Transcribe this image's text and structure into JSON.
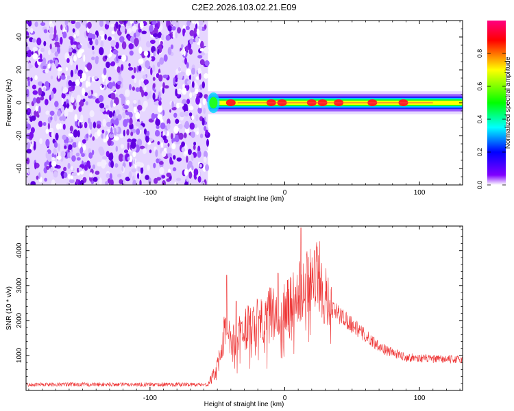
{
  "title": "C2E2.2026.103.02.21.E09",
  "chart_data": [
    {
      "type": "heatmap",
      "name": "spectrogram",
      "xlabel": "Height of straight line (km)",
      "ylabel": "Frequency (Hz)",
      "xlim": [
        -192,
        132
      ],
      "ylim": [
        -50,
        50
      ],
      "xticks": [
        -100,
        0,
        100
      ],
      "yticks": [
        -40,
        -20,
        0,
        20,
        40
      ],
      "noise_region_x": [
        -192,
        -57
      ],
      "signal_band_x": [
        -57,
        132
      ],
      "signal_band_frequency_hz": 0,
      "signal_band_halfwidth_hz": [
        3,
        7
      ],
      "colorbar": {
        "label": "Normalized spectral amplitude",
        "range": [
          0.0,
          1.0
        ],
        "ticks": [
          0.0,
          0.2,
          0.4,
          0.6,
          0.8
        ],
        "tick_labels": [
          "0.0",
          "0.2",
          "0.4",
          "0.6",
          "0.8"
        ],
        "colormap": [
          "#FFFFFF",
          "#8000FF",
          "#0000FF",
          "#00FFFF",
          "#00FF00",
          "#FFFF00",
          "#FF0000",
          "#FF0080"
        ]
      }
    },
    {
      "type": "line",
      "name": "snr",
      "xlabel": "Height of straight line (km)",
      "ylabel": "SNR (10 * v/v)",
      "xlim": [
        -192,
        132
      ],
      "ylim": [
        0,
        4700
      ],
      "xticks": [
        -100,
        0,
        100
      ],
      "yticks": [
        1000,
        2000,
        3000,
        4000
      ],
      "color": "#EE3333",
      "envelope": {
        "x": [
          -192,
          -57,
          -50,
          -46,
          -43,
          -40,
          -30,
          -20,
          -10,
          0,
          10,
          15,
          20,
          25,
          30,
          35,
          45,
          60,
          75,
          90,
          110,
          132
        ],
        "y": [
          170,
          170,
          700,
          1500,
          1700,
          1350,
          1750,
          2050,
          2250,
          2400,
          2700,
          3000,
          3300,
          3250,
          2800,
          2300,
          2050,
          1550,
          1150,
          950,
          900,
          880
        ]
      },
      "spikes": [
        {
          "x": -43,
          "y": 3300
        },
        {
          "x": -36,
          "y": 2550
        },
        {
          "x": -5,
          "y": 3350
        },
        {
          "x": 12,
          "y": 4650
        },
        {
          "x": 22,
          "y": 4000
        }
      ]
    }
  ]
}
